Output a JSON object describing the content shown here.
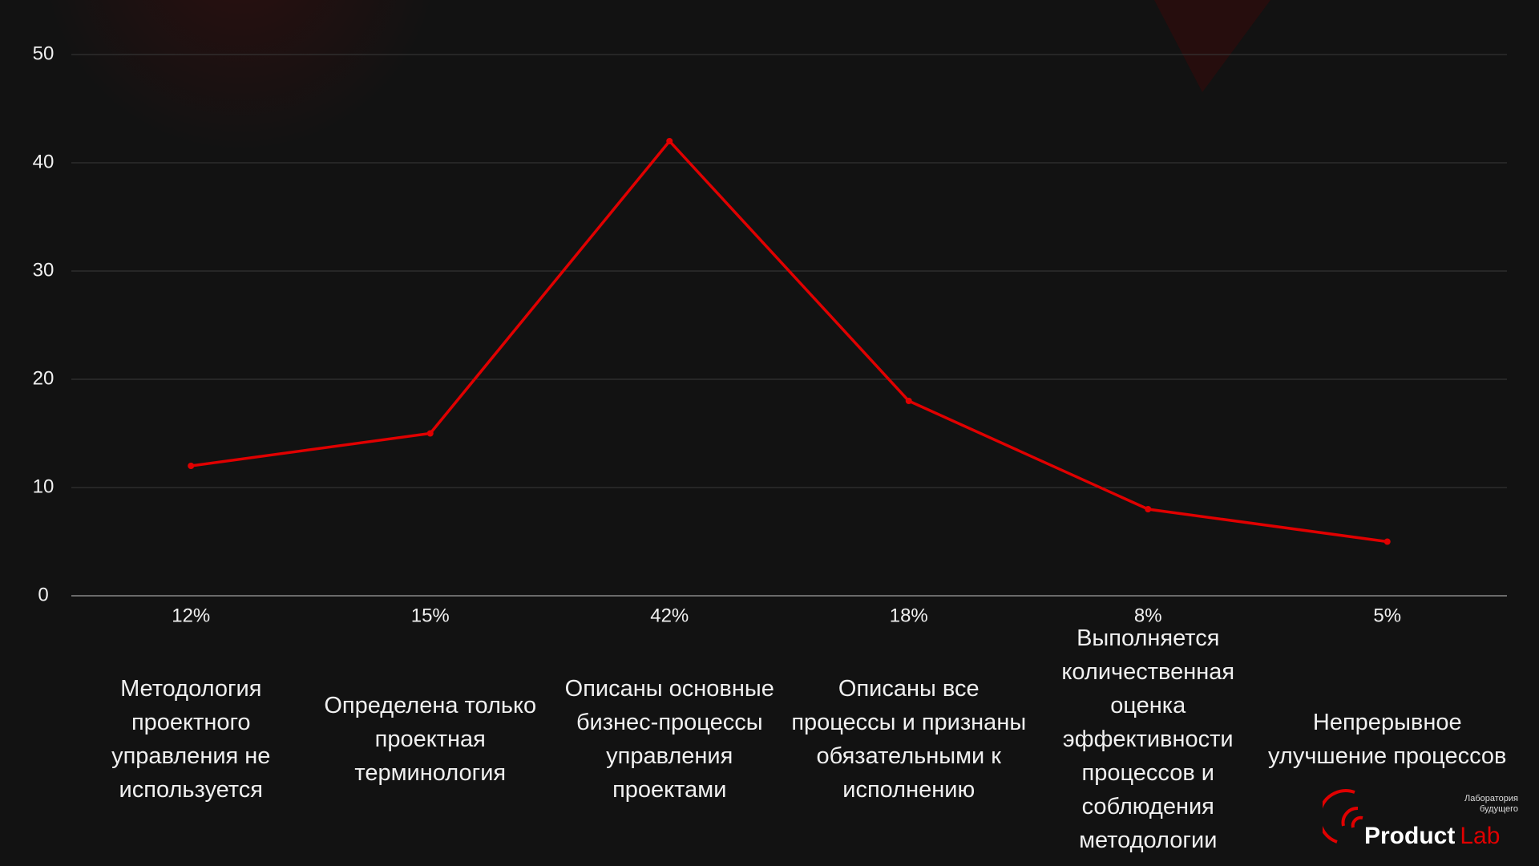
{
  "chart_data": {
    "type": "line",
    "categories": [
      "12%",
      "15%",
      "42%",
      "18%",
      "8%",
      "5%"
    ],
    "descriptions": [
      "Методология проектного управления не используется",
      "Определена только проектная терминология",
      "Описаны основные бизнес-процессы управления проектами",
      "Описаны все процессы и признаны обязательными к исполнению",
      "Выполняется количественная оценка эффективности процессов и соблюдения методологии",
      "Непрерывное улучшение процессов"
    ],
    "values": [
      12,
      15,
      42,
      18,
      8,
      5
    ],
    "color": "#e00000",
    "ylim": [
      0,
      50
    ],
    "yticks": [
      0,
      10,
      20,
      30,
      40,
      50
    ],
    "grid": true
  },
  "logo": {
    "tagline": "Лаборатория будущего",
    "brand": "Product",
    "brand_accent": "Lab"
  }
}
